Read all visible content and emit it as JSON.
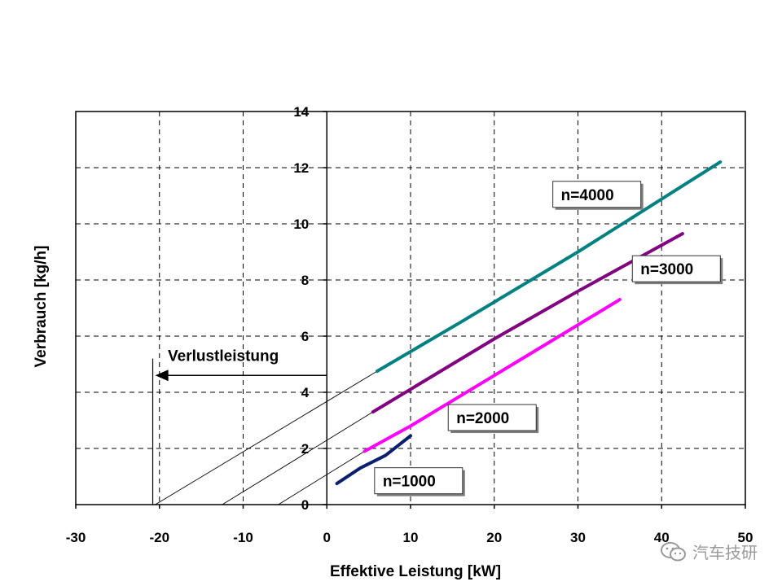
{
  "chart_data": {
    "type": "line",
    "title": "",
    "xlabel": "Effektive Leistung [kW]",
    "ylabel": "Verbrauch [kg/h]",
    "xlim": [
      -30,
      50
    ],
    "ylim": [
      0,
      14
    ],
    "x_ticks": [
      "-30",
      "-20",
      "-10",
      "0",
      "10",
      "20",
      "30",
      "40",
      "50"
    ],
    "y_ticks": [
      "0",
      "2",
      "4",
      "6",
      "8",
      "10",
      "12",
      "14"
    ],
    "grid": true,
    "series": [
      {
        "name": "n=1000",
        "color": "#0b1f6e",
        "x": [
          1.2,
          4,
          7,
          10
        ],
        "y": [
          0.75,
          1.3,
          1.75,
          2.45
        ]
      },
      {
        "name": "n=2000",
        "color": "#ff00ff",
        "x": [
          4.5,
          10,
          20,
          35
        ],
        "y": [
          1.9,
          2.8,
          4.6,
          7.3
        ]
      },
      {
        "name": "n=3000",
        "color": "#800080",
        "x": [
          5.5,
          20,
          30,
          42.5
        ],
        "y": [
          3.3,
          5.9,
          7.6,
          9.65
        ]
      },
      {
        "name": "n=4000",
        "color": "#008080",
        "x": [
          6,
          16,
          30,
          47
        ],
        "y": [
          4.75,
          6.5,
          9.0,
          12.2
        ]
      }
    ],
    "extrapolation_lines": [
      {
        "from": [
          6,
          4.75
        ],
        "to": [
          -20.5,
          0
        ]
      },
      {
        "from": [
          5.5,
          3.3
        ],
        "to": [
          -12.5,
          0
        ]
      },
      {
        "from": [
          4.5,
          1.9
        ],
        "to": [
          -5.8,
          0
        ]
      }
    ],
    "annotations": {
      "verlust_label": "Verlustleistung",
      "arrow_from": [
        0,
        4.6
      ],
      "arrow_to": [
        -20.5,
        4.6
      ],
      "vertical_x": -20.8,
      "vertical_top": 5.2
    },
    "callouts": [
      {
        "series": "n=4000",
        "text": "n=4000",
        "x": 27.0,
        "y": 11.05
      },
      {
        "series": "n=3000",
        "text": "n=3000",
        "x": 36.5,
        "y": 8.4
      },
      {
        "series": "n=2000",
        "text": "n=2000",
        "x": 14.5,
        "y": 3.1
      },
      {
        "series": "n=1000",
        "text": "n=1000",
        "x": 5.7,
        "y": 0.85
      }
    ]
  },
  "watermark": {
    "text": "汽车技研",
    "icon": "wechat-icon"
  }
}
